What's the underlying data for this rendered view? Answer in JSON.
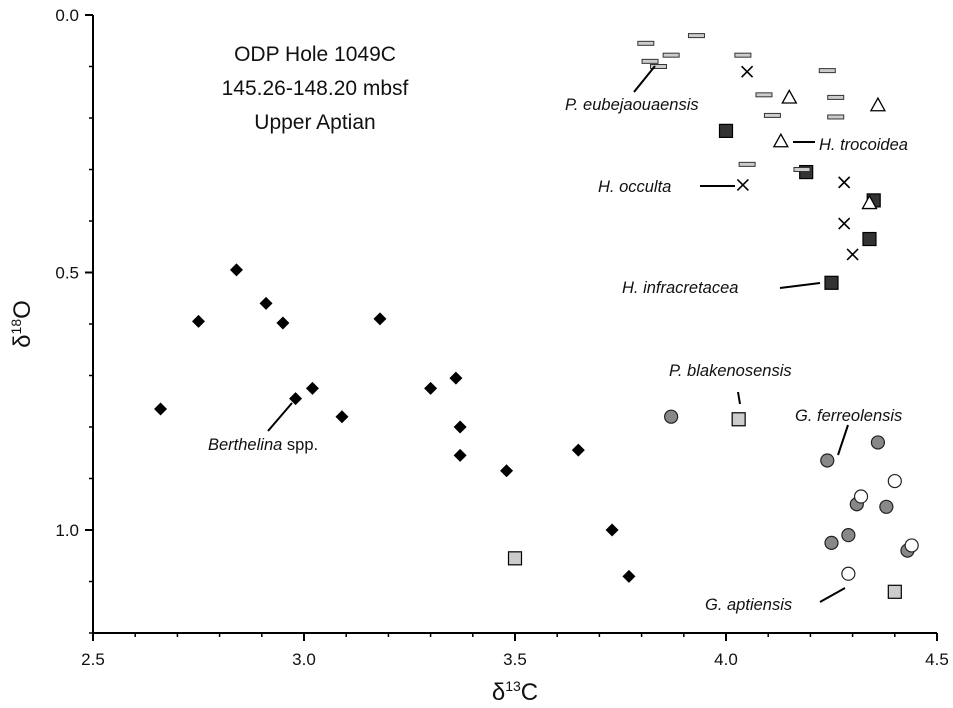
{
  "chart_data": {
    "type": "scatter",
    "title_lines": [
      "ODP Hole 1049C",
      "145.26-148.20 mbsf",
      "Upper Aptian"
    ],
    "xlabel": "δ13C",
    "ylabel": "δ18O",
    "xlim": [
      2.5,
      4.5
    ],
    "ylim": [
      0.0,
      1.2
    ],
    "y_inverted": true,
    "x_ticks": [
      "2.5",
      "3.0",
      "3.5",
      "4.0",
      "4.5"
    ],
    "y_ticks": [
      "0.0",
      "0.5",
      "1.0"
    ],
    "grid": false,
    "series": [
      {
        "marker": "diamond",
        "fill": "#000000",
        "points": [
          [
            2.66,
            0.765
          ],
          [
            2.75,
            0.595
          ],
          [
            2.84,
            0.495
          ],
          [
            2.91,
            0.56
          ],
          [
            2.95,
            0.598
          ],
          [
            2.98,
            0.745
          ],
          [
            3.02,
            0.725
          ],
          [
            3.09,
            0.78
          ],
          [
            3.18,
            0.59
          ],
          [
            3.3,
            0.725
          ],
          [
            3.36,
            0.705
          ],
          [
            3.37,
            0.8
          ],
          [
            3.37,
            0.855
          ],
          [
            3.48,
            0.885
          ],
          [
            3.65,
            0.845
          ],
          [
            3.73,
            1.0
          ],
          [
            3.77,
            1.09
          ]
        ]
      },
      {
        "marker": "square",
        "fill": "#333333",
        "points": [
          [
            4.0,
            0.225
          ],
          [
            4.19,
            0.305
          ],
          [
            4.25,
            0.52
          ],
          [
            4.34,
            0.435
          ],
          [
            4.35,
            0.36
          ]
        ]
      },
      {
        "marker": "x",
        "fill": "none",
        "points": [
          [
            4.05,
            0.11
          ],
          [
            4.04,
            0.33
          ],
          [
            4.28,
            0.325
          ],
          [
            4.28,
            0.405
          ],
          [
            4.3,
            0.465
          ]
        ]
      },
      {
        "marker": "triangle",
        "fill": "#ffffff",
        "points": [
          [
            4.15,
            0.16
          ],
          [
            4.13,
            0.245
          ],
          [
            4.36,
            0.175
          ],
          [
            4.34,
            0.365
          ]
        ]
      },
      {
        "marker": "dash",
        "fill": "#cccccc",
        "points": [
          [
            3.81,
            0.055
          ],
          [
            3.82,
            0.09
          ],
          [
            3.84,
            0.1
          ],
          [
            3.87,
            0.078
          ],
          [
            3.93,
            0.04
          ],
          [
            4.04,
            0.078
          ],
          [
            4.09,
            0.155
          ],
          [
            4.11,
            0.195
          ],
          [
            4.24,
            0.108
          ],
          [
            4.26,
            0.16
          ],
          [
            4.26,
            0.198
          ],
          [
            4.05,
            0.29
          ],
          [
            4.18,
            0.3
          ]
        ]
      },
      {
        "marker": "circle",
        "fill": "#888888",
        "points": [
          [
            3.87,
            0.78
          ],
          [
            4.24,
            0.865
          ],
          [
            4.36,
            0.83
          ],
          [
            4.31,
            0.95
          ],
          [
            4.38,
            0.955
          ],
          [
            4.25,
            1.025
          ],
          [
            4.29,
            1.01
          ],
          [
            4.43,
            1.04
          ]
        ]
      },
      {
        "marker": "circle",
        "fill": "#ffffff",
        "points": [
          [
            4.32,
            0.935
          ],
          [
            4.4,
            0.905
          ],
          [
            4.44,
            1.03
          ],
          [
            4.29,
            1.085
          ]
        ]
      },
      {
        "marker": "square",
        "fill": "#cccccc",
        "points": [
          [
            4.03,
            0.785
          ],
          [
            3.5,
            1.055
          ],
          [
            4.4,
            1.12
          ]
        ]
      }
    ],
    "annotations": [
      {
        "text": "P. eubejaouaensis",
        "italic": true,
        "leader": true
      },
      {
        "text": "H. trocoidea",
        "italic": true,
        "leader": true
      },
      {
        "text": "H. occulta",
        "italic": true,
        "leader": true
      },
      {
        "text": "H. infracretacea",
        "italic": true,
        "leader": true
      },
      {
        "text": "P. blakenosensis",
        "italic": true,
        "leader": true
      },
      {
        "text": "G. ferreolensis",
        "italic": true,
        "leader": true
      },
      {
        "text": "G. aptiensis",
        "italic": true,
        "leader": true
      },
      {
        "text_italic": "Berthelina",
        "text_plain": " spp.",
        "leader": true
      }
    ]
  }
}
